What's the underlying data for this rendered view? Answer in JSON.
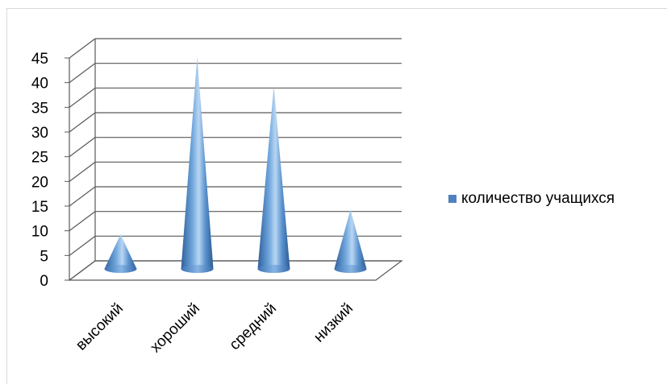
{
  "chart_data": {
    "type": "bar",
    "shape": "cone-3d",
    "categories": [
      "высокий",
      "хороший",
      "средний",
      "низкий"
    ],
    "series": [
      {
        "name": "количество учащихся",
        "values": [
          7,
          43,
          37,
          12
        ]
      }
    ],
    "ylim": [
      0,
      45
    ],
    "yticks": [
      "0",
      "5",
      "10",
      "15",
      "20",
      "25",
      "30",
      "35",
      "40",
      "45"
    ],
    "grid": true,
    "legend_position": "right",
    "colors": {
      "series": "#4f81bd",
      "grid": "#595959"
    }
  }
}
